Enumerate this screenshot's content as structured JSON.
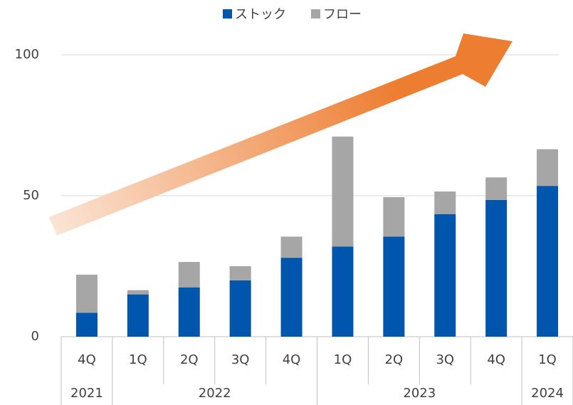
{
  "chart_data": {
    "type": "stacked_bar",
    "groups": [
      {
        "name": "2021",
        "categories": [
          "4Q"
        ]
      },
      {
        "name": "2022",
        "categories": [
          "1Q",
          "2Q",
          "3Q",
          "4Q"
        ]
      },
      {
        "name": "2023",
        "categories": [
          "1Q",
          "2Q",
          "3Q",
          "4Q"
        ]
      },
      {
        "name": "2024",
        "categories": [
          "1Q"
        ]
      }
    ],
    "series": [
      {
        "name": "ストック",
        "color": "#0055ad",
        "values": [
          8.5,
          15,
          17.5,
          20,
          28,
          32,
          35.5,
          43.5,
          48.5,
          53.5
        ]
      },
      {
        "name": "フロー",
        "color": "#a6a6a6",
        "values": [
          13.5,
          1.5,
          9,
          5,
          7.5,
          39,
          14,
          8,
          8,
          13
        ]
      }
    ],
    "ylim": [
      0,
      100
    ],
    "yticks": [
      0,
      50,
      100
    ],
    "grid": true,
    "legend": "top"
  }
}
